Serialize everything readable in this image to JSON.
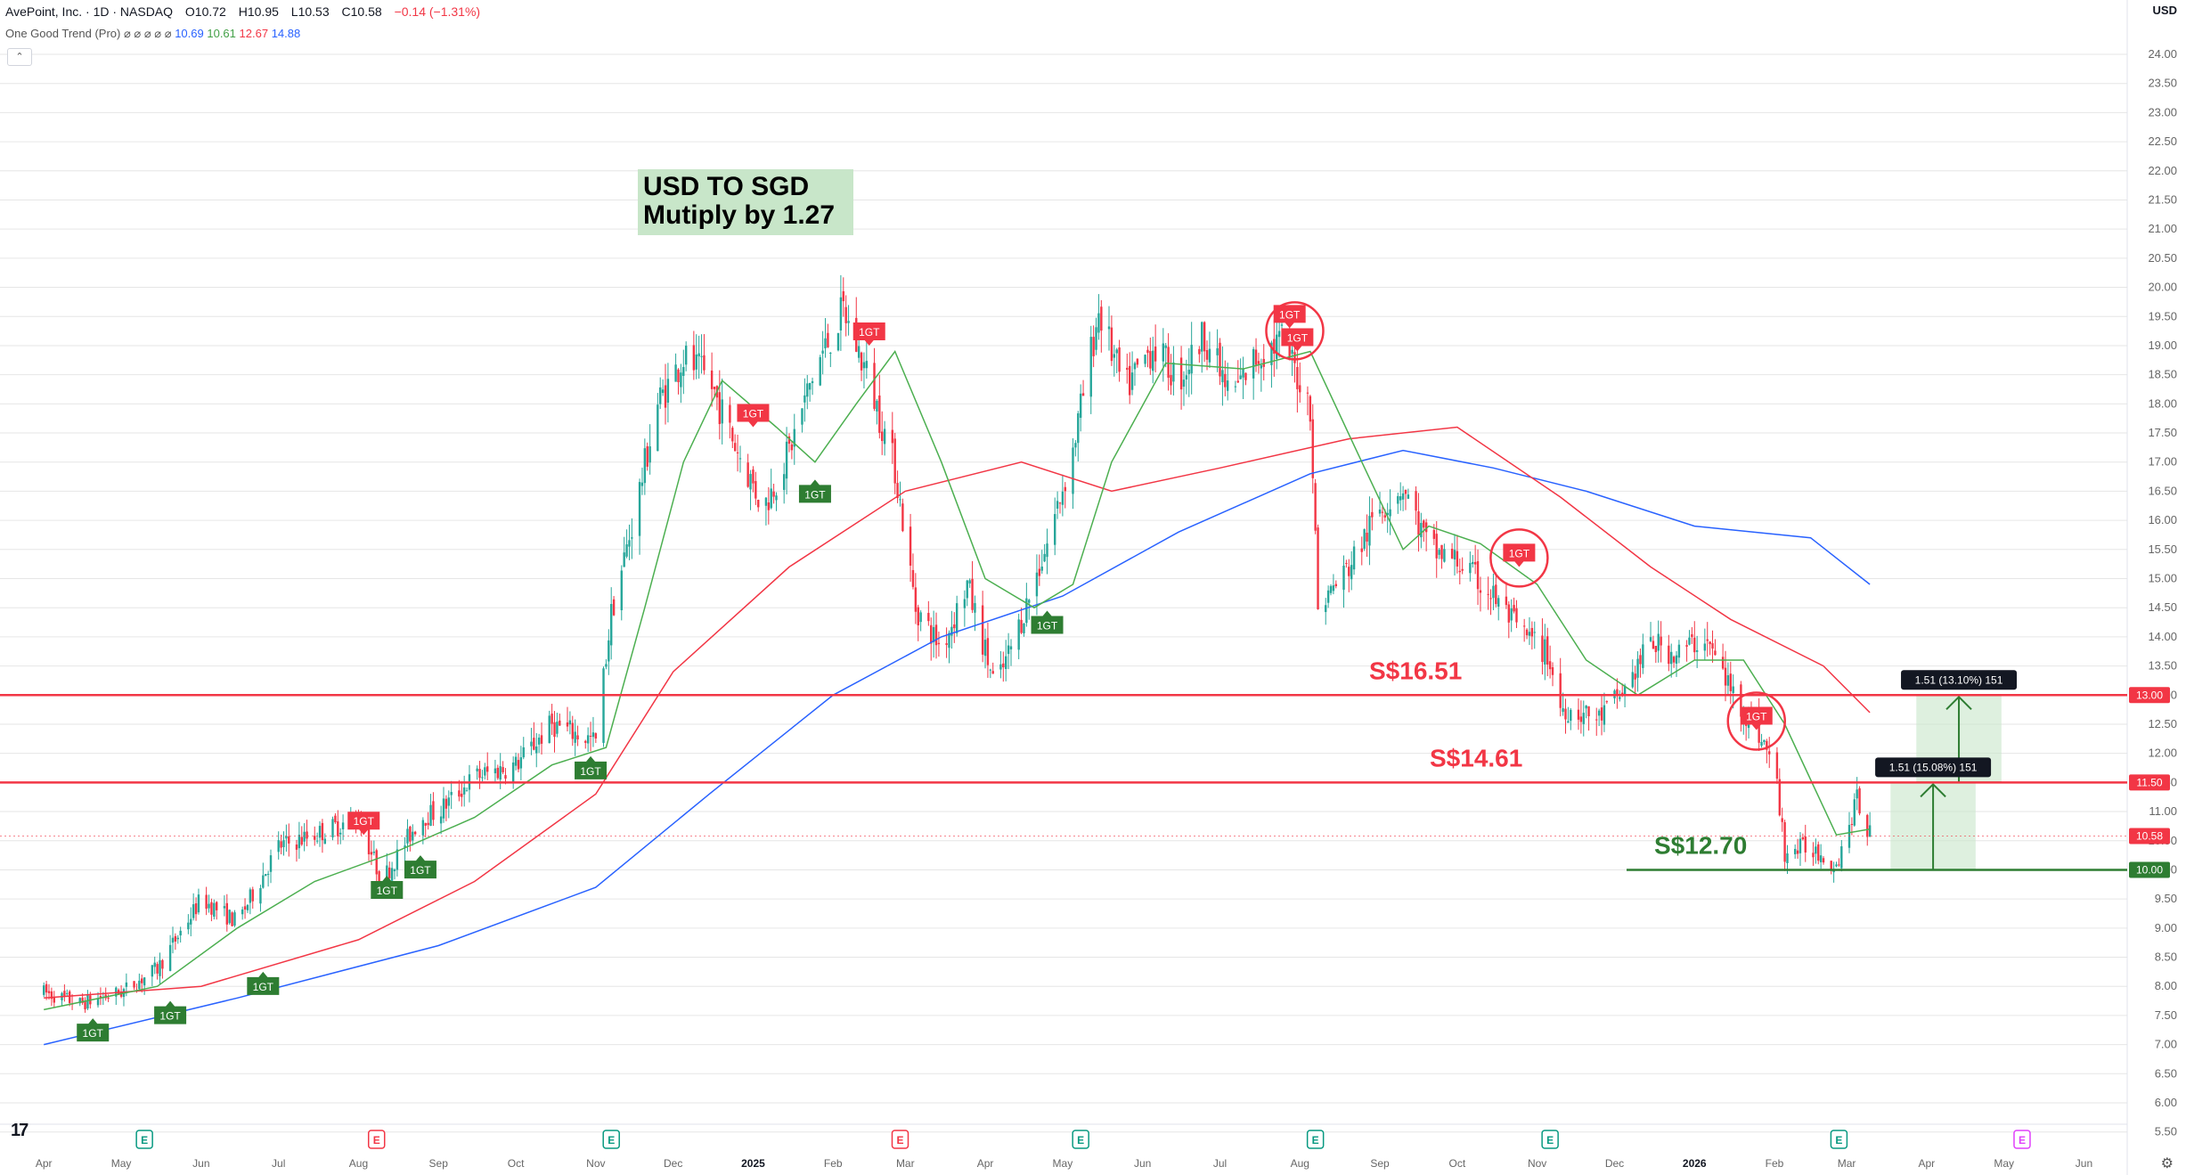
{
  "header": {
    "symbol": "AvePoint, Inc. · 1D · NASDAQ",
    "open": "O10.72",
    "high": "H10.95",
    "low": "L10.53",
    "close": "C10.58",
    "change": "−0.14 (−1.31%)"
  },
  "indicator": {
    "name": "One Good Trend (Pro)",
    "symbols": "⌀ ⌀ ⌀ ⌀ ⌀",
    "values": [
      "10.69",
      "10.61",
      "12.67",
      "14.88"
    ]
  },
  "collapse_icon": "chevron-up-icon",
  "currency": "USD",
  "annotation": {
    "line1": "USD TO SGD",
    "line2": "Mutiply by 1.27"
  },
  "colors": {
    "up": "#26a69a",
    "down": "#f23645",
    "ma_fast": "#4caf50",
    "ma_mid": "#f23645",
    "ma_slow": "#2962ff",
    "level": "#f23645",
    "support": "#2e7d32"
  },
  "chart_data": {
    "type": "candlestick",
    "ylim": [
      5.5,
      24.5
    ],
    "y_ticks": [
      "24.00",
      "23.50",
      "23.00",
      "22.50",
      "22.00",
      "21.50",
      "21.00",
      "20.50",
      "20.00",
      "19.50",
      "19.00",
      "18.50",
      "18.00",
      "17.50",
      "17.00",
      "16.50",
      "16.00",
      "15.50",
      "15.00",
      "14.50",
      "14.00",
      "13.50",
      "13.00",
      "12.50",
      "12.00",
      "11.50",
      "11.00",
      "10.50",
      "10.00",
      "9.50",
      "9.00",
      "8.50",
      "8.00",
      "7.50",
      "7.00",
      "6.50",
      "6.00",
      "5.50"
    ],
    "x_ticks": [
      "Apr",
      "May",
      "Jun",
      "Jul",
      "Aug",
      "Sep",
      "Oct",
      "Nov",
      "Dec",
      "2025",
      "Feb",
      "Mar",
      "Apr",
      "May",
      "Jun",
      "Jul",
      "Aug",
      "Sep",
      "Oct",
      "Nov",
      "Dec",
      "2026",
      "Feb",
      "Mar",
      "Apr",
      "May",
      "Jun"
    ],
    "price_path": [
      [
        "2024-04-01",
        7.9
      ],
      [
        "2024-04-15",
        7.7
      ],
      [
        "2024-05-01",
        7.9
      ],
      [
        "2024-05-15",
        8.3
      ],
      [
        "2024-06-01",
        9.5
      ],
      [
        "2024-06-15",
        9.1
      ],
      [
        "2024-07-01",
        10.4
      ],
      [
        "2024-07-15",
        10.6
      ],
      [
        "2024-08-01",
        10.9
      ],
      [
        "2024-08-10",
        9.8
      ],
      [
        "2024-08-25",
        10.9
      ],
      [
        "2024-09-01",
        11.0
      ],
      [
        "2024-09-15",
        11.6
      ],
      [
        "2024-10-01",
        11.8
      ],
      [
        "2024-10-15",
        12.5
      ],
      [
        "2024-11-01",
        12.2
      ],
      [
        "2024-11-07",
        14.4
      ],
      [
        "2024-11-15",
        15.9
      ],
      [
        "2024-11-25",
        18.0
      ],
      [
        "2024-12-05",
        18.8
      ],
      [
        "2024-12-15",
        18.4
      ],
      [
        "2024-12-25",
        17.3
      ],
      [
        "2025-01-05",
        16.2
      ],
      [
        "2025-01-15",
        17.2
      ],
      [
        "2025-01-25",
        18.6
      ],
      [
        "2025-02-05",
        19.6
      ],
      [
        "2025-02-15",
        18.4
      ],
      [
        "2025-02-25",
        16.9
      ],
      [
        "2025-03-05",
        14.5
      ],
      [
        "2025-03-15",
        13.8
      ],
      [
        "2025-03-25",
        14.9
      ],
      [
        "2025-04-05",
        13.1
      ],
      [
        "2025-04-15",
        14.3
      ],
      [
        "2025-04-25",
        15.6
      ],
      [
        "2025-05-05",
        17.2
      ],
      [
        "2025-05-15",
        19.6
      ],
      [
        "2025-05-25",
        18.2
      ],
      [
        "2025-06-05",
        19.0
      ],
      [
        "2025-06-15",
        18.4
      ],
      [
        "2025-06-25",
        19.2
      ],
      [
        "2025-07-05",
        18.1
      ],
      [
        "2025-07-15",
        18.8
      ],
      [
        "2025-07-25",
        19.1
      ],
      [
        "2025-08-05",
        18.0
      ],
      [
        "2025-08-08",
        14.5
      ],
      [
        "2025-08-20",
        15.2
      ],
      [
        "2025-09-01",
        16.2
      ],
      [
        "2025-09-10",
        16.6
      ],
      [
        "2025-09-20",
        15.5
      ],
      [
        "2025-10-01",
        15.3
      ],
      [
        "2025-10-15",
        14.7
      ],
      [
        "2025-10-25",
        14.1
      ],
      [
        "2025-11-05",
        13.7
      ],
      [
        "2025-11-10",
        12.8
      ],
      [
        "2025-11-25",
        12.6
      ],
      [
        "2025-12-05",
        13.1
      ],
      [
        "2025-12-15",
        13.9
      ],
      [
        "2025-12-25",
        13.7
      ],
      [
        "2026-01-05",
        14.0
      ],
      [
        "2026-01-15",
        13.1
      ],
      [
        "2026-01-25",
        12.4
      ],
      [
        "2026-02-01",
        11.8
      ],
      [
        "2026-02-05",
        10.3
      ],
      [
        "2026-02-15",
        10.4
      ],
      [
        "2026-02-25",
        10.1
      ],
      [
        "2026-03-05",
        11.2
      ],
      [
        "2026-03-10",
        10.6
      ]
    ],
    "ma_fast": [
      [
        "2024-04-01",
        7.6
      ],
      [
        "2024-05-15",
        8.0
      ],
      [
        "2024-06-15",
        9.0
      ],
      [
        "2024-07-15",
        9.8
      ],
      [
        "2024-08-15",
        10.3
      ],
      [
        "2024-09-15",
        10.9
      ],
      [
        "2024-10-15",
        11.8
      ],
      [
        "2024-11-05",
        12.1
      ],
      [
        "2024-11-20",
        14.5
      ],
      [
        "2024-12-05",
        17.0
      ],
      [
        "2024-12-20",
        18.4
      ],
      [
        "2025-01-10",
        17.6
      ],
      [
        "2025-01-25",
        17.0
      ],
      [
        "2025-02-10",
        18.0
      ],
      [
        "2025-02-25",
        18.9
      ],
      [
        "2025-03-15",
        17.0
      ],
      [
        "2025-04-01",
        15.0
      ],
      [
        "2025-04-20",
        14.5
      ],
      [
        "2025-05-05",
        14.9
      ],
      [
        "2025-05-20",
        17.0
      ],
      [
        "2025-06-10",
        18.7
      ],
      [
        "2025-07-10",
        18.6
      ],
      [
        "2025-08-05",
        18.9
      ],
      [
        "2025-08-25",
        17.0
      ],
      [
        "2025-09-10",
        15.5
      ],
      [
        "2025-09-20",
        15.9
      ],
      [
        "2025-10-10",
        15.6
      ],
      [
        "2025-11-01",
        14.9
      ],
      [
        "2025-11-20",
        13.6
      ],
      [
        "2025-12-10",
        13.0
      ],
      [
        "2026-01-01",
        13.6
      ],
      [
        "2026-01-20",
        13.6
      ],
      [
        "2026-02-05",
        12.5
      ],
      [
        "2026-02-25",
        10.6
      ],
      [
        "2026-03-10",
        10.7
      ]
    ],
    "ma_mid": [
      [
        "2024-04-01",
        7.8
      ],
      [
        "2024-06-01",
        8.0
      ],
      [
        "2024-08-01",
        8.8
      ],
      [
        "2024-09-15",
        9.8
      ],
      [
        "2024-11-01",
        11.3
      ],
      [
        "2024-12-01",
        13.4
      ],
      [
        "2025-01-15",
        15.2
      ],
      [
        "2025-03-01",
        16.5
      ],
      [
        "2025-04-15",
        17.0
      ],
      [
        "2025-05-20",
        16.5
      ],
      [
        "2025-07-01",
        16.9
      ],
      [
        "2025-08-20",
        17.4
      ],
      [
        "2025-10-01",
        17.6
      ],
      [
        "2025-11-10",
        16.4
      ],
      [
        "2025-12-15",
        15.2
      ],
      [
        "2026-01-15",
        14.3
      ],
      [
        "2026-02-20",
        13.5
      ],
      [
        "2026-03-10",
        12.7
      ]
    ],
    "ma_slow": [
      [
        "2024-04-01",
        7.0
      ],
      [
        "2024-06-15",
        7.8
      ],
      [
        "2024-09-01",
        8.7
      ],
      [
        "2024-11-01",
        9.7
      ],
      [
        "2024-12-15",
        11.3
      ],
      [
        "2025-02-01",
        13.0
      ],
      [
        "2025-03-15",
        14.0
      ],
      [
        "2025-05-01",
        14.7
      ],
      [
        "2025-06-15",
        15.8
      ],
      [
        "2025-08-05",
        16.8
      ],
      [
        "2025-09-10",
        17.2
      ],
      [
        "2025-10-15",
        16.9
      ],
      [
        "2025-11-20",
        16.5
      ],
      [
        "2026-01-01",
        15.9
      ],
      [
        "2026-02-15",
        15.7
      ],
      [
        "2026-03-10",
        14.9
      ]
    ],
    "levels": [
      {
        "price": 13.0,
        "axis_label": "13.00",
        "text": "S$16.51",
        "color": "#f23645"
      },
      {
        "price": 11.5,
        "axis_label": "11.50",
        "text": "S$14.61",
        "color": "#f23645"
      },
      {
        "price": 10.0,
        "axis_label": "10.00",
        "text": "S$12.70",
        "color": "#2e7d32"
      }
    ],
    "last_price": {
      "price": 10.58,
      "label": "10.58"
    },
    "projections": [
      {
        "from_date": "2026-03-28",
        "to_date": "2026-04-30",
        "low": 11.5,
        "high": 13.0,
        "label": "1.51 (13.10%) 151"
      },
      {
        "from_date": "2026-03-18",
        "to_date": "2026-04-20",
        "low": 10.0,
        "high": 11.5,
        "label": "1.51 (15.08%) 151"
      }
    ],
    "signals": [
      {
        "date": "2024-04-20",
        "price": 7.45,
        "type": "buy",
        "text": "1GT"
      },
      {
        "date": "2024-05-20",
        "price": 7.75,
        "type": "buy",
        "text": "1GT"
      },
      {
        "date": "2024-06-25",
        "price": 8.25,
        "type": "buy",
        "text": "1GT"
      },
      {
        "date": "2024-08-12",
        "price": 9.9,
        "type": "buy",
        "text": "1GT"
      },
      {
        "date": "2024-08-25",
        "price": 10.25,
        "type": "buy",
        "text": "1GT"
      },
      {
        "date": "2024-10-30",
        "price": 11.95,
        "type": "buy",
        "text": "1GT"
      },
      {
        "date": "2025-01-25",
        "price": 16.7,
        "type": "buy",
        "text": "1GT"
      },
      {
        "date": "2025-04-25",
        "price": 14.45,
        "type": "buy",
        "text": "1GT"
      },
      {
        "date": "2024-08-03",
        "price": 10.6,
        "type": "sell",
        "text": "1GT"
      },
      {
        "date": "2025-01-01",
        "price": 17.6,
        "type": "sell",
        "text": "1GT"
      },
      {
        "date": "2025-02-15",
        "price": 19.0,
        "type": "sell",
        "text": "1GT"
      },
      {
        "date": "2025-07-28",
        "price": 19.3,
        "type": "sell",
        "text": "1GT"
      },
      {
        "date": "2025-07-31",
        "price": 18.9,
        "type": "sell",
        "text": "1GT"
      },
      {
        "date": "2025-10-25",
        "price": 15.2,
        "type": "sell",
        "text": "1GT"
      },
      {
        "date": "2026-01-25",
        "price": 12.4,
        "type": "sell",
        "text": "1GT"
      }
    ],
    "circles": [
      {
        "date": "2025-07-30",
        "price": 19.1
      },
      {
        "date": "2025-10-25",
        "price": 15.2
      },
      {
        "date": "2026-01-25",
        "price": 12.4
      }
    ],
    "earnings": [
      {
        "date": "2024-05-10",
        "type": "E",
        "color": "#089981"
      },
      {
        "date": "2024-08-08",
        "type": "E",
        "color": "#f23645"
      },
      {
        "date": "2024-11-07",
        "type": "E",
        "color": "#089981"
      },
      {
        "date": "2025-02-27",
        "type": "E",
        "color": "#f23645"
      },
      {
        "date": "2025-05-08",
        "type": "E",
        "color": "#089981"
      },
      {
        "date": "2025-08-07",
        "type": "E",
        "color": "#089981"
      },
      {
        "date": "2025-11-06",
        "type": "E",
        "color": "#089981"
      },
      {
        "date": "2026-02-26",
        "type": "E",
        "color": "#089981"
      },
      {
        "date": "2026-05-08",
        "type": "E",
        "color": "#e040fb"
      }
    ]
  }
}
